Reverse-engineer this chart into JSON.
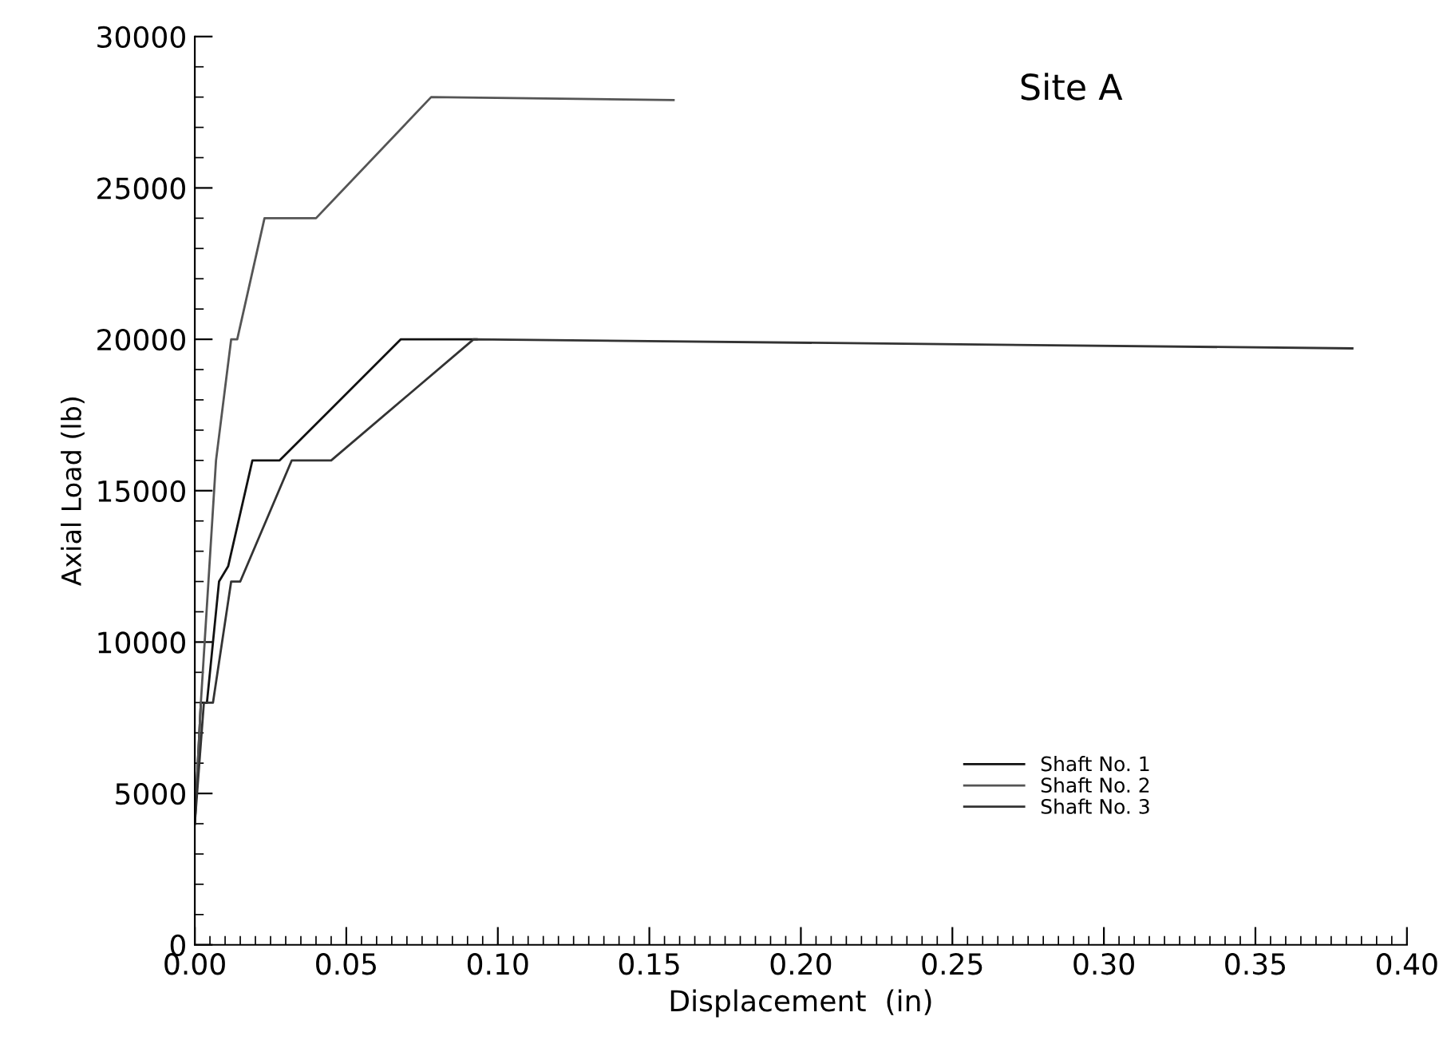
{
  "chart_data": {
    "type": "line",
    "title": "Site A",
    "xlabel": "Displacement  (in)",
    "ylabel": "Axial Load (lb)",
    "xlim": [
      0,
      0.4
    ],
    "ylim": [
      0,
      30000
    ],
    "xticks": [
      {
        "value": 0,
        "label": "0.00"
      },
      0.05,
      {
        "value": 0.1,
        "label": "0.10"
      },
      0.15,
      {
        "value": 0.2,
        "label": "0.20"
      },
      0.25,
      {
        "value": 0.3,
        "label": "0.30"
      },
      0.35,
      {
        "value": 0.4,
        "label": "0.40"
      }
    ],
    "yticks": [
      0,
      5000,
      10000,
      15000,
      20000,
      25000,
      30000
    ],
    "legend": "bottom right",
    "grid": false,
    "marker": "none",
    "line_style": "solid",
    "series": [
      {
        "name": "Shaft No. 1",
        "color": "#111111",
        "x": [
          0,
          0.002,
          0.004,
          0.008,
          0.011,
          0.019,
          0.028,
          0.068,
          0.093
        ],
        "values": [
          4000,
          8000,
          8000,
          12000,
          12500,
          16000,
          16000,
          20000,
          20000
        ]
      },
      {
        "name": "Shaft No. 2",
        "color": "#555555",
        "x": [
          0,
          0.002,
          0.007,
          0.012,
          0.014,
          0.023,
          0.04,
          0.078,
          0.158
        ],
        "values": [
          4000,
          8000,
          16000,
          20000,
          20000,
          24000,
          24000,
          28000,
          27900
        ]
      },
      {
        "name": "Shaft No. 3",
        "color": "#333333",
        "x": [
          0,
          0.003,
          0.006,
          0.012,
          0.015,
          0.032,
          0.045,
          0.092,
          0.382
        ],
        "values": [
          4000,
          8000,
          8000,
          12000,
          12000,
          16000,
          16000,
          20000,
          19700
        ]
      }
    ]
  }
}
